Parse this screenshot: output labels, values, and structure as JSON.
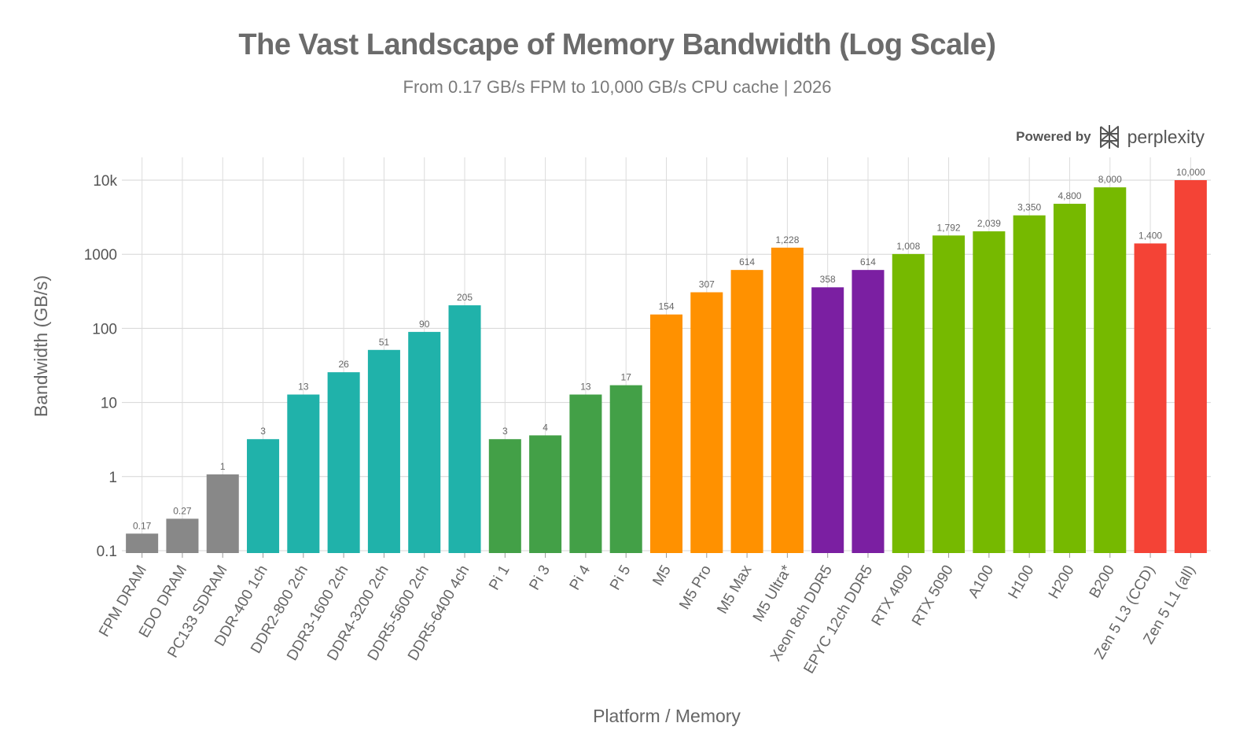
{
  "brand": {
    "prefix": "Powered by",
    "name": "perplexity",
    "icon": "perplexity-logo-icon"
  },
  "chart_data": {
    "type": "bar",
    "title": "The Vast Landscape of Memory Bandwidth (Log Scale)",
    "subtitle": "From 0.17 GB/s FPM to 10,000 GB/s CPU cache | 2026",
    "xlabel": "Platform / Memory",
    "ylabel": "Bandwidth (GB/s)",
    "yscale": "log",
    "ylim": [
      0.1,
      10000
    ],
    "yticks": [
      0.1,
      1,
      10,
      100,
      1000,
      10000
    ],
    "ytick_labels": [
      "0.1",
      "1",
      "10",
      "100",
      "1000",
      "10k"
    ],
    "grid": true,
    "categories": [
      "FPM DRAM",
      "EDO DRAM",
      "PC133 SDRAM",
      "DDR-400 1ch",
      "DDR2-800 2ch",
      "DDR3-1600 2ch",
      "DDR4-3200 2ch",
      "DDR5-5600 2ch",
      "DDR5-6400 4ch",
      "Pi 1",
      "Pi 3",
      "Pi 4",
      "Pi 5",
      "M5",
      "M5 Pro",
      "M5 Max",
      "M5 Ultra*",
      "Xeon 8ch DDR5",
      "EPYC 12ch DDR5",
      "RTX 4090",
      "RTX 5090",
      "A100",
      "H100",
      "H200",
      "B200",
      "Zen 5 L3 (CCD)",
      "Zen 5 L1 (all)"
    ],
    "values": [
      0.17,
      0.27,
      1.07,
      3.2,
      12.8,
      25.6,
      51.2,
      89.6,
      204.8,
      3.2,
      3.6,
      12.8,
      17.1,
      154,
      307,
      614,
      1228,
      358,
      614,
      1008,
      1792,
      2039,
      3350,
      4800,
      8000,
      1400,
      10000
    ],
    "data_labels": [
      "0.17",
      "0.27",
      "1",
      "3",
      "13",
      "26",
      "51",
      "90",
      "205",
      "3",
      "4",
      "13",
      "17",
      "154",
      "307",
      "614",
      "1,228",
      "358",
      "614",
      "1,008",
      "1,792",
      "2,039",
      "3,350",
      "4,800",
      "8,000",
      "1,400",
      "10,000"
    ],
    "colors": [
      "#888888",
      "#888888",
      "#888888",
      "#20b2aa",
      "#20b2aa",
      "#20b2aa",
      "#20b2aa",
      "#20b2aa",
      "#20b2aa",
      "#43a047",
      "#43a047",
      "#43a047",
      "#43a047",
      "#ff9100",
      "#ff9100",
      "#ff9100",
      "#ff9100",
      "#7b1fa2",
      "#7b1fa2",
      "#76b900",
      "#76b900",
      "#76b900",
      "#76b900",
      "#76b900",
      "#76b900",
      "#f44336",
      "#f44336"
    ]
  }
}
